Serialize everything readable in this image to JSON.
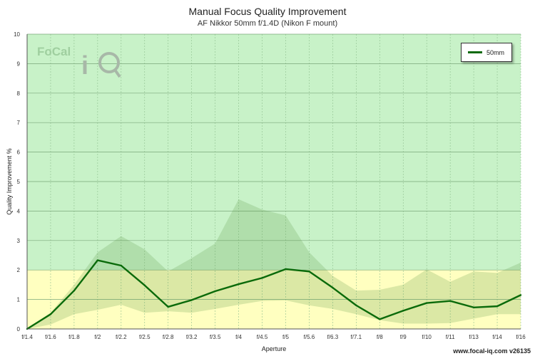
{
  "chart_data": {
    "type": "line",
    "title": "Manual Focus Quality Improvement",
    "subtitle": "AF Nikkor 50mm f/1.4D (Nikon F mount)",
    "xlabel": "Aperture",
    "ylabel": "Quality Improvement %",
    "ylim": [
      0,
      10
    ],
    "yticks": [
      0,
      1,
      2,
      3,
      4,
      5,
      6,
      7,
      8,
      9,
      10
    ],
    "categories": [
      "f/1.4",
      "f/1.6",
      "f/1.8",
      "f/2",
      "f/2.2",
      "f/2.5",
      "f/2.8",
      "f/3.2",
      "f/3.5",
      "f/4",
      "f/4.5",
      "f/5",
      "f/5.6",
      "f/6.3",
      "f/7.1",
      "f/8",
      "f/9",
      "f/10",
      "f/11",
      "f/13",
      "f/14",
      "f/16"
    ],
    "series": [
      {
        "name": "50mm",
        "color": "#0a6a0a",
        "values": [
          0.0,
          0.5,
          1.3,
          2.33,
          2.15,
          1.48,
          0.75,
          0.98,
          1.28,
          1.52,
          1.73,
          2.03,
          1.95,
          1.4,
          0.8,
          0.33,
          0.62,
          0.88,
          0.95,
          0.73,
          0.77,
          1.15
        ]
      }
    ],
    "band_upper": [
      0.0,
      0.55,
      1.5,
      2.6,
      3.15,
      2.7,
      1.95,
      2.4,
      2.9,
      4.4,
      4.05,
      3.85,
      2.6,
      1.8,
      1.3,
      1.33,
      1.5,
      2.02,
      1.6,
      1.95,
      1.9,
      2.25
    ],
    "band_lower": [
      0.0,
      0.15,
      0.5,
      0.65,
      0.82,
      0.55,
      0.6,
      0.55,
      0.68,
      0.82,
      0.95,
      0.97,
      0.8,
      0.68,
      0.5,
      0.3,
      0.18,
      0.18,
      0.2,
      0.35,
      0.5,
      0.5
    ],
    "zones": [
      {
        "from": 0,
        "to": 2,
        "color": "#ffffc0"
      },
      {
        "from": 2,
        "to": 10,
        "color": "#c8f2c8"
      }
    ],
    "grid": true,
    "legend_position": "top-right"
  },
  "footer": "www.focal-iq.com  v26135",
  "logo_text": "FoCal iQ"
}
